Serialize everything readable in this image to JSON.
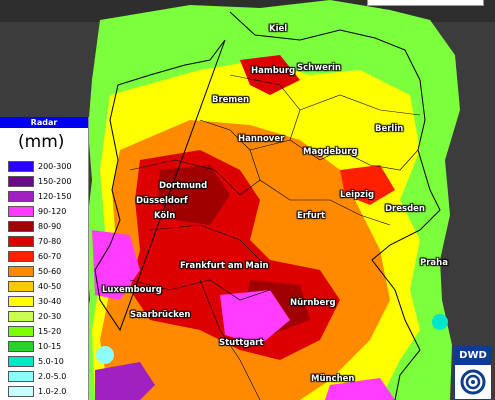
{
  "legend": {
    "title": "Radar",
    "unit": "(mm)",
    "classes": [
      {
        "label": "200-300",
        "color": "#2a00ff"
      },
      {
        "label": "150-200",
        "color": "#6a0a8a"
      },
      {
        "label": "120-150",
        "color": "#a020c0"
      },
      {
        "label": "90-120",
        "color": "#ff3cff"
      },
      {
        "label": "80-90",
        "color": "#a00000"
      },
      {
        "label": "70-80",
        "color": "#dc0000"
      },
      {
        "label": "60-70",
        "color": "#ff2000"
      },
      {
        "label": "50-60",
        "color": "#ff8a00"
      },
      {
        "label": "40-50",
        "color": "#ffc800"
      },
      {
        "label": "30-40",
        "color": "#ffff00"
      },
      {
        "label": "20-30",
        "color": "#c8ff50"
      },
      {
        "label": "15-20",
        "color": "#7aff00"
      },
      {
        "label": "10-15",
        "color": "#28d228"
      },
      {
        "label": "5.0-10",
        "color": "#00e6c8"
      },
      {
        "label": "2.0-5.0",
        "color": "#8cffff"
      },
      {
        "label": "1.0-2.0",
        "color": "#c8ffff"
      }
    ]
  },
  "logo": {
    "text": "DWD"
  },
  "cities": {
    "kiel": "Kiel",
    "hamburg": "Hamburg",
    "schwerin": "Schwerin",
    "bremen": "Bremen",
    "berlin": "Berlin",
    "hannover": "Hannover",
    "magdeburg": "Magdeburg",
    "dortmund": "Dortmund",
    "leipzig": "Leipzig",
    "duesseldorf": "Düsseldorf",
    "dresden": "Dresden",
    "koeln": "Köln",
    "erfurt": "Erfurt",
    "frankfurt": "Frankfurt am Main",
    "praha": "Praha",
    "luxembourg": "Luxembourg",
    "nuernberg": "Nürnberg",
    "saarbruecken": "Saarbrücken",
    "stuttgart": "Stuttgart",
    "muenchen": "München"
  }
}
